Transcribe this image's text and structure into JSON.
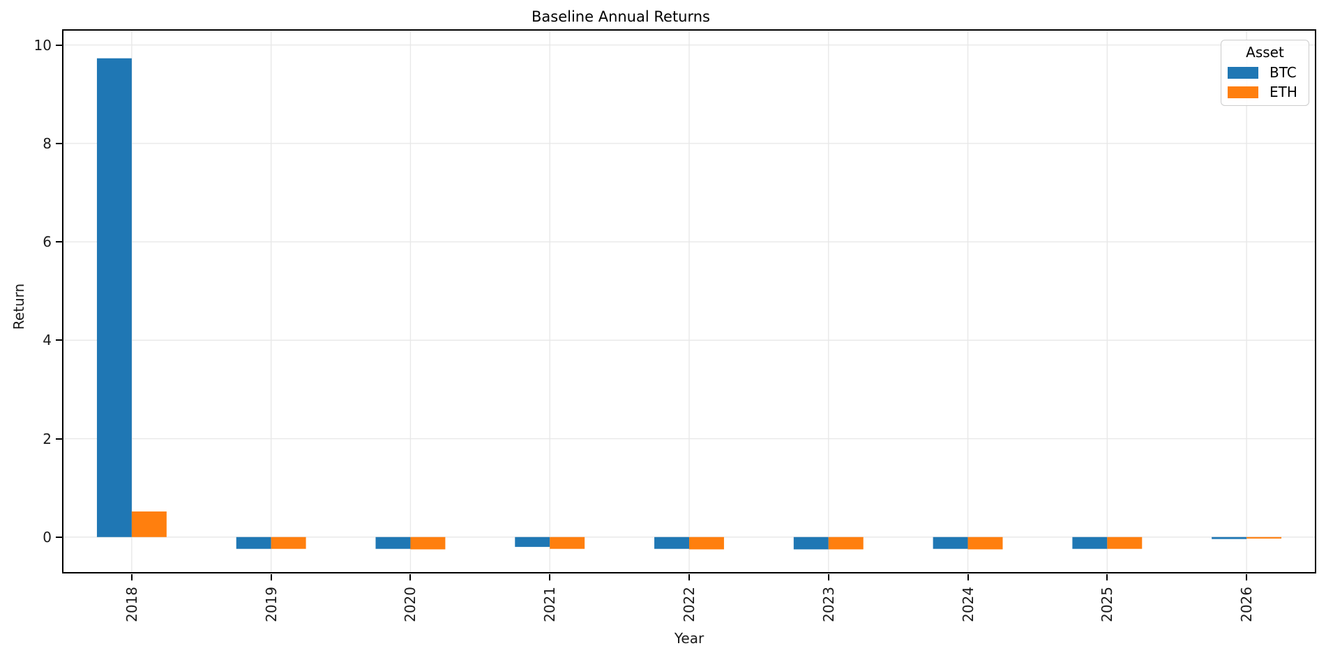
{
  "chart_data": {
    "type": "bar",
    "title": "Baseline Annual Returns",
    "xlabel": "Year",
    "ylabel": "Return",
    "legend_title": "Asset",
    "legend_position": "upper right",
    "grid": true,
    "categories": [
      "2018",
      "2019",
      "2020",
      "2021",
      "2022",
      "2023",
      "2024",
      "2025",
      "2026"
    ],
    "series": [
      {
        "name": "BTC",
        "color": "#1f77b4",
        "values": [
          9.73,
          -0.24,
          -0.24,
          -0.2,
          -0.24,
          -0.25,
          -0.24,
          -0.24,
          -0.04
        ]
      },
      {
        "name": "ETH",
        "color": "#ff7f0e",
        "values": [
          0.52,
          -0.24,
          -0.25,
          -0.24,
          -0.25,
          -0.25,
          -0.25,
          -0.24,
          -0.03
        ]
      }
    ],
    "ylim": [
      -0.74,
      10.32
    ],
    "yticks": [
      0,
      2,
      4,
      6,
      8,
      10
    ]
  },
  "colors": {
    "grid": "#e8e8e8",
    "spine": "#000000",
    "text": "#1a1a1a",
    "legend_border": "#cccccc",
    "background": "#ffffff"
  }
}
